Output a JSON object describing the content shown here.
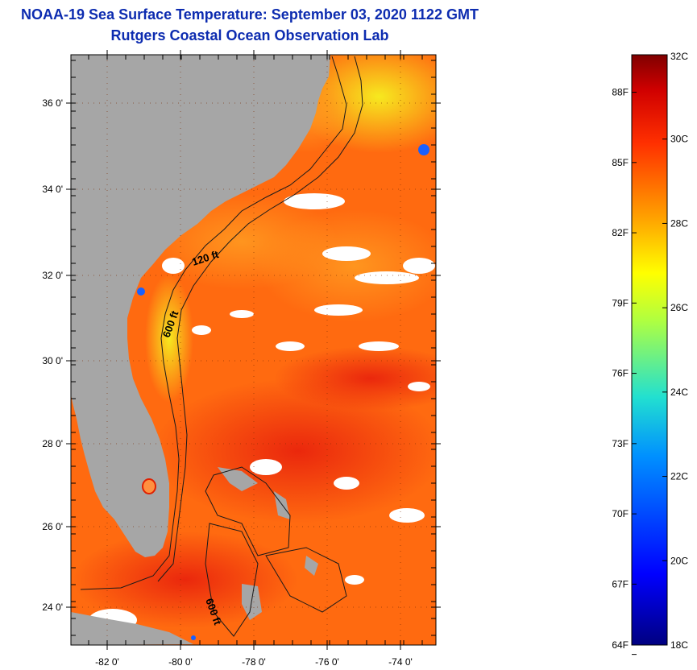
{
  "header": {
    "title": "NOAA-19 Sea Surface Temperature:  September 03, 2020 1122 GMT",
    "subtitle": "Rutgers Coastal Ocean Observation Lab"
  },
  "map": {
    "lat_labels": [
      "36 0'",
      "34 0'",
      "32 0'",
      "30 0'",
      "28 0'",
      "26 0'",
      "24 0'"
    ],
    "lon_labels": [
      "-82 0'",
      "-80 0'",
      "-78 0'",
      "-76 0'",
      "-74 0'"
    ],
    "contour_labels": [
      "120 ft",
      "600 ft",
      "600 ft"
    ],
    "colors": {
      "land": "#a6a6a6",
      "ocean_warm": "#ff6a10",
      "ocean_hot": "#f03a12",
      "cloud": "#ffffff"
    }
  },
  "colorbar": {
    "min_c": 18,
    "max_c": 32,
    "celsius_labels": [
      "32C",
      "30C",
      "28C",
      "26C",
      "24C",
      "22C",
      "20C",
      "18C"
    ],
    "fahrenheit_labels": [
      "88F",
      "85F",
      "82F",
      "79F",
      "76F",
      "73F",
      "70F",
      "67F",
      "64F"
    ]
  }
}
